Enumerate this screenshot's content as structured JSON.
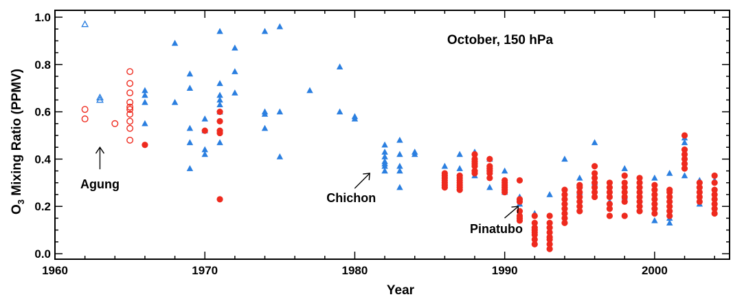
{
  "chart_data": {
    "type": "scatter",
    "title": "October, 150 hPa",
    "xlabel": "Year",
    "ylabel": "O3 Mixing Ratio (PPMV)",
    "ylabel_main": "O",
    "ylabel_sub": "3",
    "ylabel_rest": " Mixing Ratio (PPMV)",
    "xlim": [
      1960,
      2005
    ],
    "ylim": [
      0.0,
      1.0
    ],
    "xticks": [
      "1960",
      "1970",
      "1980",
      "1990",
      "2000"
    ],
    "yticks": [
      "0.0",
      "0.2",
      "0.4",
      "0.6",
      "0.8",
      "1.0"
    ],
    "colors": {
      "blue": "#2b7fe0",
      "red": "#ee2a1e"
    },
    "series": [
      {
        "marker": "triangle-filled",
        "color": "blue",
        "points": [
          [
            1966,
            0.55
          ],
          [
            1966,
            0.64
          ],
          [
            1966,
            0.67
          ],
          [
            1966,
            0.69
          ],
          [
            1968,
            0.64
          ],
          [
            1968,
            0.89
          ],
          [
            1969,
            0.36
          ],
          [
            1969,
            0.47
          ],
          [
            1969,
            0.53
          ],
          [
            1969,
            0.7
          ],
          [
            1969,
            0.76
          ],
          [
            1970,
            0.42
          ],
          [
            1970,
            0.44
          ],
          [
            1970,
            0.52
          ],
          [
            1970,
            0.57
          ],
          [
            1971,
            0.47
          ],
          [
            1971,
            0.6
          ],
          [
            1971,
            0.63
          ],
          [
            1971,
            0.65
          ],
          [
            1971,
            0.67
          ],
          [
            1971,
            0.72
          ],
          [
            1971,
            0.94
          ],
          [
            1972,
            0.68
          ],
          [
            1972,
            0.77
          ],
          [
            1972,
            0.87
          ],
          [
            1974,
            0.53
          ],
          [
            1974,
            0.59
          ],
          [
            1974,
            0.6
          ],
          [
            1974,
            0.94
          ],
          [
            1975,
            0.41
          ],
          [
            1975,
            0.6
          ],
          [
            1975,
            0.96
          ],
          [
            1977,
            0.69
          ],
          [
            1979,
            0.6
          ],
          [
            1979,
            0.79
          ],
          [
            1980,
            0.57
          ],
          [
            1980,
            0.58
          ],
          [
            1982,
            0.35
          ],
          [
            1982,
            0.37
          ],
          [
            1982,
            0.38
          ],
          [
            1982,
            0.39
          ],
          [
            1982,
            0.41
          ],
          [
            1982,
            0.43
          ],
          [
            1982,
            0.46
          ],
          [
            1983,
            0.28
          ],
          [
            1983,
            0.35
          ],
          [
            1983,
            0.37
          ],
          [
            1983,
            0.42
          ],
          [
            1983,
            0.48
          ],
          [
            1984,
            0.42
          ],
          [
            1984,
            0.43
          ],
          [
            1986,
            0.3
          ],
          [
            1986,
            0.33
          ],
          [
            1986,
            0.37
          ],
          [
            1987,
            0.28
          ],
          [
            1987,
            0.36
          ],
          [
            1987,
            0.42
          ],
          [
            1988,
            0.33
          ],
          [
            1988,
            0.43
          ],
          [
            1989,
            0.28
          ],
          [
            1989,
            0.4
          ],
          [
            1990,
            0.26
          ],
          [
            1990,
            0.35
          ],
          [
            1991,
            0.21
          ],
          [
            1991,
            0.24
          ],
          [
            1992,
            0.12
          ],
          [
            1992,
            0.17
          ],
          [
            1993,
            0.08
          ],
          [
            1993,
            0.25
          ],
          [
            1994,
            0.22
          ],
          [
            1994,
            0.4
          ],
          [
            1995,
            0.26
          ],
          [
            1995,
            0.32
          ],
          [
            1996,
            0.3
          ],
          [
            1996,
            0.47
          ],
          [
            1997,
            0.22
          ],
          [
            1997,
            0.29
          ],
          [
            1998,
            0.24
          ],
          [
            1998,
            0.36
          ],
          [
            1999,
            0.21
          ],
          [
            1999,
            0.29
          ],
          [
            2000,
            0.14
          ],
          [
            2000,
            0.2
          ],
          [
            2000,
            0.32
          ],
          [
            2001,
            0.13
          ],
          [
            2001,
            0.15
          ],
          [
            2001,
            0.34
          ],
          [
            2002,
            0.33
          ],
          [
            2002,
            0.47
          ],
          [
            2002,
            0.49
          ],
          [
            2003,
            0.21
          ],
          [
            2003,
            0.31
          ],
          [
            2004,
            0.2
          ],
          [
            2004,
            0.31
          ]
        ]
      },
      {
        "marker": "triangle-open",
        "color": "blue",
        "points": [
          [
            1962,
            0.97
          ],
          [
            1963,
            0.65
          ],
          [
            1963,
            0.66
          ]
        ]
      },
      {
        "marker": "circle-open",
        "color": "red",
        "points": [
          [
            1962,
            0.61
          ],
          [
            1962,
            0.57
          ],
          [
            1964,
            0.55
          ],
          [
            1965,
            0.48
          ],
          [
            1965,
            0.53
          ],
          [
            1965,
            0.56
          ],
          [
            1965,
            0.59
          ],
          [
            1965,
            0.61
          ],
          [
            1965,
            0.62
          ],
          [
            1965,
            0.64
          ],
          [
            1965,
            0.68
          ],
          [
            1965,
            0.72
          ],
          [
            1965,
            0.77
          ]
        ]
      },
      {
        "marker": "circle-filled",
        "color": "red",
        "points": [
          [
            1966,
            0.46
          ],
          [
            1970,
            0.52
          ],
          [
            1971,
            0.23
          ],
          [
            1971,
            0.51
          ],
          [
            1971,
            0.52
          ],
          [
            1971,
            0.56
          ],
          [
            1971,
            0.6
          ],
          [
            1986,
            0.28
          ],
          [
            1986,
            0.29
          ],
          [
            1986,
            0.3
          ],
          [
            1986,
            0.31
          ],
          [
            1986,
            0.32
          ],
          [
            1986,
            0.33
          ],
          [
            1986,
            0.34
          ],
          [
            1987,
            0.27
          ],
          [
            1987,
            0.28
          ],
          [
            1987,
            0.29
          ],
          [
            1987,
            0.3
          ],
          [
            1987,
            0.31
          ],
          [
            1987,
            0.32
          ],
          [
            1987,
            0.33
          ],
          [
            1988,
            0.34
          ],
          [
            1988,
            0.35
          ],
          [
            1988,
            0.37
          ],
          [
            1988,
            0.38
          ],
          [
            1988,
            0.39
          ],
          [
            1988,
            0.4
          ],
          [
            1988,
            0.42
          ],
          [
            1989,
            0.32
          ],
          [
            1989,
            0.34
          ],
          [
            1989,
            0.35
          ],
          [
            1989,
            0.36
          ],
          [
            1989,
            0.37
          ],
          [
            1989,
            0.4
          ],
          [
            1990,
            0.26
          ],
          [
            1990,
            0.27
          ],
          [
            1990,
            0.28
          ],
          [
            1990,
            0.29
          ],
          [
            1990,
            0.3
          ],
          [
            1990,
            0.31
          ],
          [
            1991,
            0.14
          ],
          [
            1991,
            0.15
          ],
          [
            1991,
            0.16
          ],
          [
            1991,
            0.18
          ],
          [
            1991,
            0.22
          ],
          [
            1991,
            0.23
          ],
          [
            1991,
            0.31
          ],
          [
            1992,
            0.04
          ],
          [
            1992,
            0.06
          ],
          [
            1992,
            0.08
          ],
          [
            1992,
            0.09
          ],
          [
            1992,
            0.1
          ],
          [
            1992,
            0.11
          ],
          [
            1992,
            0.13
          ],
          [
            1992,
            0.16
          ],
          [
            1993,
            0.02
          ],
          [
            1993,
            0.04
          ],
          [
            1993,
            0.06
          ],
          [
            1993,
            0.07
          ],
          [
            1993,
            0.09
          ],
          [
            1993,
            0.11
          ],
          [
            1993,
            0.13
          ],
          [
            1993,
            0.16
          ],
          [
            1994,
            0.13
          ],
          [
            1994,
            0.15
          ],
          [
            1994,
            0.17
          ],
          [
            1994,
            0.19
          ],
          [
            1994,
            0.21
          ],
          [
            1994,
            0.23
          ],
          [
            1994,
            0.25
          ],
          [
            1994,
            0.27
          ],
          [
            1995,
            0.18
          ],
          [
            1995,
            0.2
          ],
          [
            1995,
            0.22
          ],
          [
            1995,
            0.24
          ],
          [
            1995,
            0.26
          ],
          [
            1995,
            0.28
          ],
          [
            1995,
            0.29
          ],
          [
            1996,
            0.24
          ],
          [
            1996,
            0.26
          ],
          [
            1996,
            0.28
          ],
          [
            1996,
            0.3
          ],
          [
            1996,
            0.32
          ],
          [
            1996,
            0.34
          ],
          [
            1996,
            0.37
          ],
          [
            1997,
            0.16
          ],
          [
            1997,
            0.19
          ],
          [
            1997,
            0.21
          ],
          [
            1997,
            0.24
          ],
          [
            1997,
            0.26
          ],
          [
            1997,
            0.28
          ],
          [
            1997,
            0.3
          ],
          [
            1998,
            0.16
          ],
          [
            1998,
            0.22
          ],
          [
            1998,
            0.24
          ],
          [
            1998,
            0.26
          ],
          [
            1998,
            0.28
          ],
          [
            1998,
            0.3
          ],
          [
            1998,
            0.33
          ],
          [
            1999,
            0.18
          ],
          [
            1999,
            0.2
          ],
          [
            1999,
            0.22
          ],
          [
            1999,
            0.24
          ],
          [
            1999,
            0.26
          ],
          [
            1999,
            0.28
          ],
          [
            1999,
            0.3
          ],
          [
            1999,
            0.32
          ],
          [
            2000,
            0.17
          ],
          [
            2000,
            0.19
          ],
          [
            2000,
            0.21
          ],
          [
            2000,
            0.23
          ],
          [
            2000,
            0.25
          ],
          [
            2000,
            0.27
          ],
          [
            2000,
            0.29
          ],
          [
            2001,
            0.16
          ],
          [
            2001,
            0.18
          ],
          [
            2001,
            0.2
          ],
          [
            2001,
            0.22
          ],
          [
            2001,
            0.24
          ],
          [
            2001,
            0.26
          ],
          [
            2001,
            0.27
          ],
          [
            2002,
            0.36
          ],
          [
            2002,
            0.38
          ],
          [
            2002,
            0.4
          ],
          [
            2002,
            0.42
          ],
          [
            2002,
            0.44
          ],
          [
            2002,
            0.5
          ],
          [
            2003,
            0.22
          ],
          [
            2003,
            0.24
          ],
          [
            2003,
            0.26
          ],
          [
            2003,
            0.28
          ],
          [
            2003,
            0.3
          ],
          [
            2004,
            0.17
          ],
          [
            2004,
            0.19
          ],
          [
            2004,
            0.21
          ],
          [
            2004,
            0.23
          ],
          [
            2004,
            0.25
          ],
          [
            2004,
            0.27
          ],
          [
            2004,
            0.3
          ],
          [
            2004,
            0.33
          ]
        ]
      }
    ],
    "annotations": [
      {
        "text": "Agung",
        "x": 1963,
        "y": 0.45
      },
      {
        "text": "Chichon",
        "x": 1981,
        "y": 0.34
      },
      {
        "text": "Pinatubo",
        "x": 1991,
        "y": 0.2
      }
    ]
  }
}
